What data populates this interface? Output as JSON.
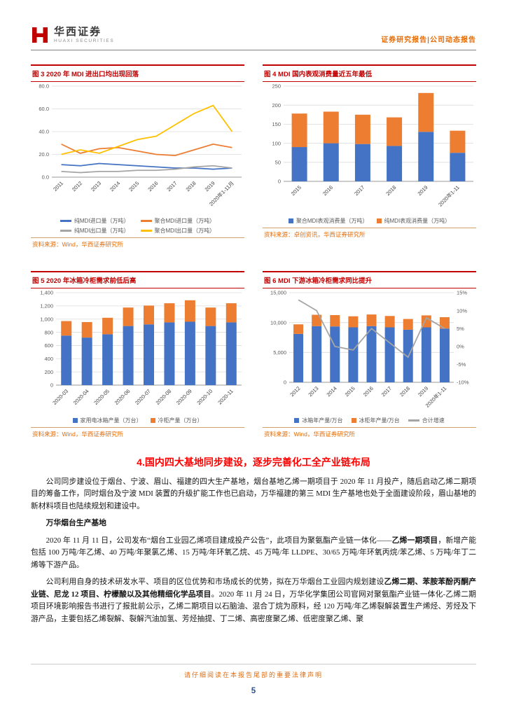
{
  "header": {
    "logo_cn": "华西证券",
    "logo_en": "HUAXI SECURITIES",
    "report_type": "证券研究报告|公司动态报告",
    "brand_color": "#c00000",
    "accent_color": "#e36c09"
  },
  "chart_data": [
    {
      "id": "fig3",
      "type": "line",
      "title": "图 3  2020 年 MDI 进出口均出现回落",
      "source": "资料来源：Wind，华西证券研究所",
      "categories": [
        "2011",
        "2012",
        "2013",
        "2014",
        "2015",
        "2016",
        "2017",
        "2018",
        "2019",
        "2020年1-11月"
      ],
      "ylim": [
        0,
        80
      ],
      "yticks": [
        0,
        20,
        40,
        60,
        80
      ],
      "ytick_labels": [
        "0.0",
        "20.0",
        "40.0",
        "60.0",
        "80.0"
      ],
      "grid": true,
      "legend_position": "bottom",
      "series": [
        {
          "name": "纯MDI进口量（万吨）",
          "type": "line",
          "marker": "line",
          "color": "#4472c4",
          "values": [
            11,
            10,
            12,
            11,
            10,
            9,
            8,
            8,
            7,
            8
          ]
        },
        {
          "name": "聚合MDI进口量（万吨）",
          "type": "line",
          "marker": "line",
          "color": "#ed7d31",
          "values": [
            29,
            21,
            25,
            26,
            23,
            20,
            19,
            24,
            29,
            26
          ]
        },
        {
          "name": "纯MDI出口量（万吨）",
          "type": "line",
          "marker": "line",
          "color": "#a5a5a5",
          "values": [
            5,
            4,
            5,
            5,
            6,
            6,
            7,
            9,
            10,
            8
          ]
        },
        {
          "name": "聚合MDI出口量（万吨）",
          "type": "line",
          "marker": "line",
          "color": "#ffc000",
          "values": [
            20,
            24,
            21,
            27,
            33,
            36,
            46,
            56,
            63,
            40
          ]
        }
      ]
    },
    {
      "id": "fig4",
      "type": "bar",
      "title": "图 4  MDI 国内表观消费量近五年最低",
      "source": "资料来源：卓创资讯，华西证券研究所",
      "categories": [
        "2015",
        "2016",
        "2017",
        "2018",
        "2019",
        "2020年1-11"
      ],
      "ylim": [
        0,
        250
      ],
      "yticks": [
        0,
        50,
        100,
        150,
        200,
        250
      ],
      "ytick_labels": [
        "0",
        "50",
        "100",
        "150",
        "200",
        "250"
      ],
      "grid": true,
      "stacked": true,
      "legend_position": "bottom",
      "series": [
        {
          "name": "聚合MDI表观消费量（万吨）",
          "type": "bar",
          "marker": "square",
          "color": "#4472c4",
          "values": [
            90,
            100,
            98,
            93,
            130,
            75
          ]
        },
        {
          "name": "纯MDI表观消费量（万吨）",
          "type": "bar",
          "marker": "square",
          "color": "#ed7d31",
          "values": [
            88,
            83,
            77,
            75,
            102,
            58
          ]
        }
      ]
    },
    {
      "id": "fig5",
      "type": "bar",
      "title": "图 5  2020 年冰箱冷柜需求前低后高",
      "source": "资料来源：Wind，华西证券研究所",
      "categories": [
        "2020-03",
        "2020-04",
        "2020-05",
        "2020-06",
        "2020-07",
        "2020-08",
        "2020-09",
        "2020-10",
        "2020-11"
      ],
      "ylim": [
        0,
        1400
      ],
      "yticks": [
        0,
        200,
        400,
        600,
        800,
        1000,
        1200,
        1400
      ],
      "ytick_labels": [
        "0",
        "200",
        "400",
        "600",
        "800",
        "1,000",
        "1,200",
        "1,400"
      ],
      "grid": true,
      "stacked": true,
      "legend_position": "bottom",
      "series": [
        {
          "name": "家用电冰箱产量（万台）",
          "type": "bar",
          "marker": "square",
          "color": "#4472c4",
          "values": [
            750,
            720,
            770,
            895,
            920,
            950,
            960,
            895,
            950
          ]
        },
        {
          "name": "冷柜产量（万台）",
          "type": "bar",
          "marker": "square",
          "color": "#ed7d31",
          "values": [
            220,
            235,
            250,
            280,
            285,
            290,
            325,
            280,
            290
          ]
        }
      ]
    },
    {
      "id": "fig6",
      "type": "bar",
      "title": "图 6  MDI 下游冰箱冷柜需求同比提升",
      "source": "资料来源：Wind，华西证券研究所",
      "categories": [
        "2012",
        "2013",
        "2014",
        "2015",
        "2016",
        "2017",
        "2018",
        "2019",
        "2020年1-11"
      ],
      "ylim": [
        0,
        15000
      ],
      "yticks": [
        0,
        5000,
        10000,
        15000
      ],
      "ytick_labels": [
        "0",
        "5,000",
        "10,000",
        "15,000"
      ],
      "y2lim": [
        -10,
        15
      ],
      "y2ticks": [
        -10,
        -5,
        0,
        5,
        10,
        15
      ],
      "y2tick_labels": [
        "-10%",
        "-5%",
        "0%",
        "5%",
        "10%",
        "15%"
      ],
      "grid": true,
      "stacked": true,
      "legend_position": "bottom",
      "series": [
        {
          "name": "冰箱年产量/万台",
          "type": "bar",
          "marker": "square",
          "color": "#4472c4",
          "values": [
            8100,
            9400,
            9350,
            9200,
            9400,
            9200,
            8800,
            9200,
            9000
          ]
        },
        {
          "name": "冰柜年产量/万台",
          "type": "bar",
          "marker": "square",
          "color": "#ed7d31",
          "values": [
            1600,
            1900,
            1900,
            1850,
            1950,
            1900,
            1800,
            2000,
            1900
          ]
        },
        {
          "name": "合计增速",
          "type": "line",
          "marker": "line",
          "axis": "right",
          "color": "#a5a5a5",
          "values": [
            13,
            10,
            0,
            -1,
            5,
            1,
            -3,
            8,
            5
          ]
        }
      ]
    }
  ],
  "section": {
    "heading": "4.国内四大基地同步建设，逐步完善化工全产业链布局",
    "paragraphs": [
      {
        "style": "body",
        "segments": [
          {
            "text": "公司同步建设位于烟台、宁波、眉山、福建的四大生产基地，烟台基地乙烯一期项目于 2020 年 11 月投产，随后启动乙烯二期项目的筹备工作，同时烟台及宁波 MDI 装置的升级扩能工作也已启动，万华福建的第三 MDI 生产基地也处于全面建设阶段，眉山基地的新材料项目也陆续规划和建设中。",
            "bold": false
          }
        ]
      },
      {
        "style": "subheading",
        "segments": [
          {
            "text": "万华烟台生产基地",
            "bold": true
          }
        ]
      },
      {
        "style": "body",
        "segments": [
          {
            "text": "2020 年 11 月 11 日，公司发布“烟台工业园乙烯项目建成投产公告”，此项目为聚氨酯产业链一体化——",
            "bold": false
          },
          {
            "text": "乙烯一期项目",
            "bold": true
          },
          {
            "text": "，新增产能包括 100 万吨/年乙烯、40 万吨/年聚氯乙烯、15 万吨/年环氧乙烷、45 万吨/年 LLDPE、30/65 万吨/年环氧丙烷/苯乙烯、5 万吨/年丁二烯等下游产品。",
            "bold": false
          }
        ]
      },
      {
        "style": "body",
        "segments": [
          {
            "text": "公司利用自身的技术研发水平、项目的区位优势和市场成长的优势，拟在万华烟台工业园内规划建设",
            "bold": false
          },
          {
            "text": "乙烯二期、苯胺苯酚丙酮产业链、尼龙 12 项目、柠檬酸以及其他精细化学品项目",
            "bold": true
          },
          {
            "text": "。2020 年 11 月 24 日，万华化学集团公司官网对聚氨酯产业链一体化-乙烯二期项目环境影响报告书进行了报批前公示，乙烯二期项目以石脑油、混合丁烷为原料，经 120 万吨/年乙烯裂解装置生产烯烃、芳烃及下游产品，主要包括乙烯裂解、裂解汽油加氢、芳烃抽提、丁二烯、高密度聚乙烯、低密度聚乙烯、聚",
            "bold": false
          }
        ]
      }
    ]
  },
  "footer": {
    "disclaimer": "请仔细阅读在本报告尾部的重要法律声明",
    "page_number": "5"
  }
}
